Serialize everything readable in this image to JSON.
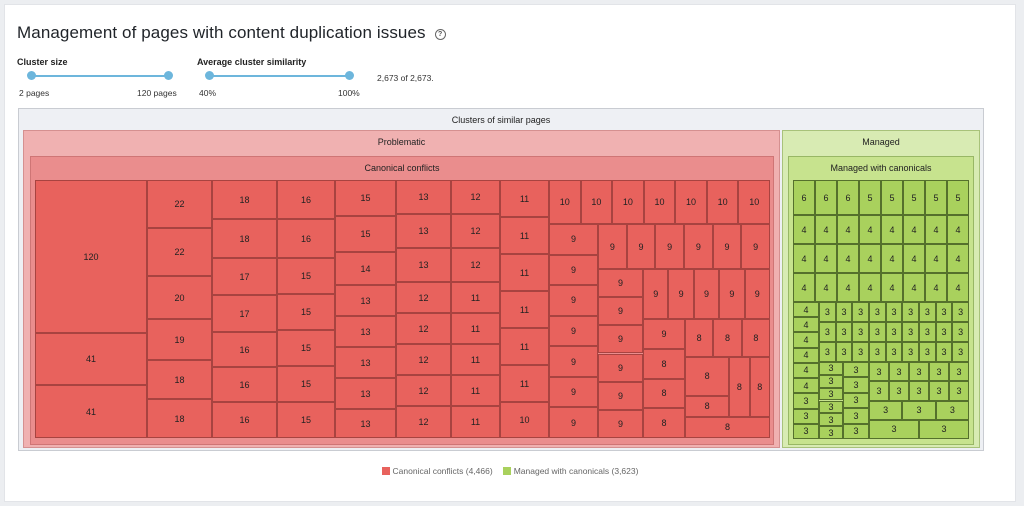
{
  "header": {
    "title": "Management of pages with content duplication issues",
    "help_icon": "help-circle-icon"
  },
  "filters": {
    "cluster_size": {
      "label": "Cluster size",
      "min_label": "2 pages",
      "max_label": "120 pages",
      "range": [
        0,
        1
      ]
    },
    "similarity": {
      "label": "Average cluster similarity",
      "min_label": "40%",
      "max_label": "100%",
      "range": [
        0,
        1
      ]
    },
    "count_text": "2,673 of 2,673."
  },
  "treemap": {
    "title": "Clusters of similar pages",
    "groups": {
      "problematic": {
        "label": "Problematic",
        "sub": "Canonical conflicts",
        "color": "#e8625d"
      },
      "managed": {
        "label": "Managed",
        "sub": "Managed with canonicals",
        "color": "#a9d15d"
      }
    },
    "red_columns": [
      [
        120,
        41,
        41
      ],
      [
        22,
        22,
        20,
        19,
        18,
        18
      ],
      [
        18,
        18,
        17,
        17,
        16,
        16,
        16
      ],
      [
        16,
        16,
        15,
        15,
        15,
        15,
        15
      ],
      [
        15,
        15,
        14,
        13,
        13,
        13,
        13,
        13
      ],
      [
        13,
        13,
        13,
        12,
        12,
        12,
        12,
        12
      ],
      [
        12,
        12,
        12,
        11,
        11,
        11,
        11,
        11
      ],
      [
        11,
        11,
        11,
        11,
        11,
        11,
        10
      ]
    ],
    "red_right": {
      "row10": [
        10,
        10,
        10,
        10,
        10,
        10,
        10
      ],
      "col_left9": [
        9,
        9,
        9,
        9,
        9,
        9,
        9
      ],
      "mid9": [
        9,
        9,
        9,
        9,
        9,
        9
      ],
      "col_mid9": [
        9,
        9,
        9,
        9,
        9
      ],
      "row9_small": [
        9,
        9,
        9,
        9,
        9
      ],
      "col_right_mix": [
        9,
        8,
        8,
        8
      ],
      "row8": [
        8,
        8,
        8
      ],
      "block8": [
        8,
        8,
        8,
        8,
        8,
        8
      ]
    },
    "green": {
      "row6": [
        6,
        6,
        6,
        5,
        5,
        5,
        5,
        5
      ],
      "rows4": [
        4,
        4,
        4,
        4,
        4,
        4,
        4,
        4,
        4,
        4,
        4,
        4,
        4,
        4,
        4,
        4,
        4,
        4,
        4,
        4,
        4,
        4,
        4,
        4
      ],
      "col4": [
        4,
        4,
        4,
        4,
        4,
        4,
        3,
        3,
        3
      ],
      "threes_label": "3"
    }
  },
  "legend": [
    {
      "label": "Canonical conflicts (4,466)",
      "color": "#e8625d"
    },
    {
      "label": "Managed with canonicals (3,623)",
      "color": "#a9d15d"
    }
  ]
}
